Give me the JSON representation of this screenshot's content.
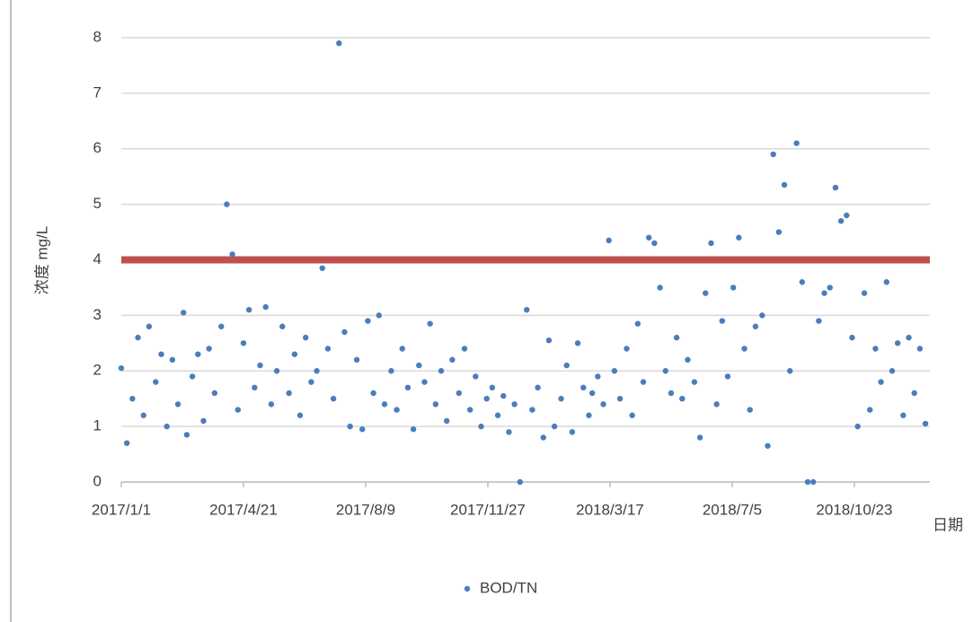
{
  "chart_data": {
    "type": "scatter",
    "y_label": "浓度 mg/L",
    "x_label": "日期",
    "xlim": [
      "2017/1/1",
      "2018/12/30"
    ],
    "xticks": [
      "2017/1/1",
      "2017/4/21",
      "2017/8/9",
      "2017/11/27",
      "2018/3/17",
      "2018/7/5",
      "2018/10/23"
    ],
    "ylim": [
      0,
      8
    ],
    "yticks": [
      0,
      1,
      2,
      3,
      4,
      5,
      6,
      7,
      8
    ],
    "grid": true,
    "legend": "bottom",
    "reference_line": {
      "value": 4,
      "color": "#c0504d"
    },
    "x": [
      "2017/1/1",
      "2017/1/6",
      "2017/1/11",
      "2017/1/16",
      "2017/1/21",
      "2017/1/26",
      "2017/2/1",
      "2017/2/6",
      "2017/2/11",
      "2017/2/16",
      "2017/2/21",
      "2017/2/26",
      "2017/3/1",
      "2017/3/6",
      "2017/3/11",
      "2017/3/16",
      "2017/3/21",
      "2017/3/26",
      "2017/4/1",
      "2017/4/6",
      "2017/4/11",
      "2017/4/16",
      "2017/4/21",
      "2017/4/26",
      "2017/5/1",
      "2017/5/6",
      "2017/5/11",
      "2017/5/16",
      "2017/5/21",
      "2017/5/26",
      "2017/6/1",
      "2017/6/6",
      "2017/6/11",
      "2017/6/16",
      "2017/6/21",
      "2017/6/26",
      "2017/7/1",
      "2017/7/6",
      "2017/7/11",
      "2017/7/16",
      "2017/7/21",
      "2017/7/26",
      "2017/8/1",
      "2017/8/6",
      "2017/8/11",
      "2017/8/16",
      "2017/8/21",
      "2017/8/26",
      "2017/9/1",
      "2017/9/6",
      "2017/9/11",
      "2017/9/16",
      "2017/9/21",
      "2017/9/26",
      "2017/10/1",
      "2017/10/6",
      "2017/10/11",
      "2017/10/16",
      "2017/10/21",
      "2017/10/26",
      "2017/11/1",
      "2017/11/6",
      "2017/11/11",
      "2017/11/16",
      "2017/11/21",
      "2017/11/26",
      "2017/12/1",
      "2017/12/6",
      "2017/12/11",
      "2017/12/16",
      "2017/12/21",
      "2017/12/26",
      "2018/1/1",
      "2018/1/6",
      "2018/1/11",
      "2018/1/16",
      "2018/1/21",
      "2018/1/26",
      "2018/2/1",
      "2018/2/6",
      "2018/2/11",
      "2018/2/16",
      "2018/2/21",
      "2018/2/26",
      "2018/3/1",
      "2018/3/6",
      "2018/3/11",
      "2018/3/16",
      "2018/3/21",
      "2018/3/26",
      "2018/4/1",
      "2018/4/6",
      "2018/4/11",
      "2018/4/16",
      "2018/4/21",
      "2018/4/26",
      "2018/5/1",
      "2018/5/6",
      "2018/5/11",
      "2018/5/16",
      "2018/5/21",
      "2018/5/26",
      "2018/6/1",
      "2018/6/6",
      "2018/6/11",
      "2018/6/16",
      "2018/6/21",
      "2018/6/26",
      "2018/7/1",
      "2018/7/6",
      "2018/7/11",
      "2018/7/16",
      "2018/7/21",
      "2018/7/26",
      "2018/8/1",
      "2018/8/6",
      "2018/8/11",
      "2018/8/16",
      "2018/8/21",
      "2018/8/26",
      "2018/9/1",
      "2018/9/6",
      "2018/9/11",
      "2018/9/16",
      "2018/9/21",
      "2018/9/26",
      "2018/10/1",
      "2018/10/6",
      "2018/10/11",
      "2018/10/16",
      "2018/10/21",
      "2018/10/26",
      "2018/11/1",
      "2018/11/6",
      "2018/11/11",
      "2018/11/16",
      "2018/11/21",
      "2018/11/26",
      "2018/12/1",
      "2018/12/6",
      "2018/12/11",
      "2018/12/16",
      "2018/12/21",
      "2018/12/26"
    ],
    "series": [
      {
        "name": "BOD/TN",
        "color": "#4a7ebb",
        "values": [
          2.05,
          0.7,
          1.5,
          2.6,
          1.2,
          2.8,
          1.8,
          2.3,
          1.0,
          2.2,
          1.4,
          3.05,
          0.85,
          1.9,
          2.3,
          1.1,
          2.4,
          1.6,
          2.8,
          5.0,
          4.1,
          1.3,
          2.5,
          3.1,
          1.7,
          2.1,
          3.15,
          1.4,
          2.0,
          2.8,
          1.6,
          2.3,
          1.2,
          2.6,
          1.8,
          2.0,
          3.85,
          2.4,
          1.5,
          7.9,
          2.7,
          1.0,
          2.2,
          0.95,
          2.9,
          1.6,
          3.0,
          1.4,
          2.0,
          1.3,
          2.4,
          1.7,
          0.95,
          2.1,
          1.8,
          2.85,
          1.4,
          2.0,
          1.1,
          2.2,
          1.6,
          2.4,
          1.3,
          1.9,
          1.0,
          1.5,
          1.7,
          1.2,
          1.55,
          0.9,
          1.4,
          0,
          3.1,
          1.3,
          1.7,
          0.8,
          2.55,
          1.0,
          1.5,
          2.1,
          0.9,
          2.5,
          1.7,
          1.2,
          1.6,
          1.9,
          1.4,
          4.35,
          2.0,
          1.5,
          2.4,
          1.2,
          2.85,
          1.8,
          4.4,
          4.3,
          3.5,
          2.0,
          1.6,
          2.6,
          1.5,
          2.2,
          1.8,
          0.8,
          3.4,
          4.3,
          1.4,
          2.9,
          1.9,
          3.5,
          4.4,
          2.4,
          1.3,
          2.8,
          3.0,
          0.65,
          5.9,
          4.5,
          5.35,
          2.0,
          6.1,
          3.6,
          0,
          0,
          2.9,
          3.4,
          3.5,
          5.3,
          4.7,
          4.8,
          2.6,
          1.0,
          3.4,
          1.3,
          2.4,
          1.8,
          3.6,
          2.0,
          2.5,
          1.2,
          2.6,
          1.6,
          2.4,
          1.05
        ]
      }
    ]
  }
}
